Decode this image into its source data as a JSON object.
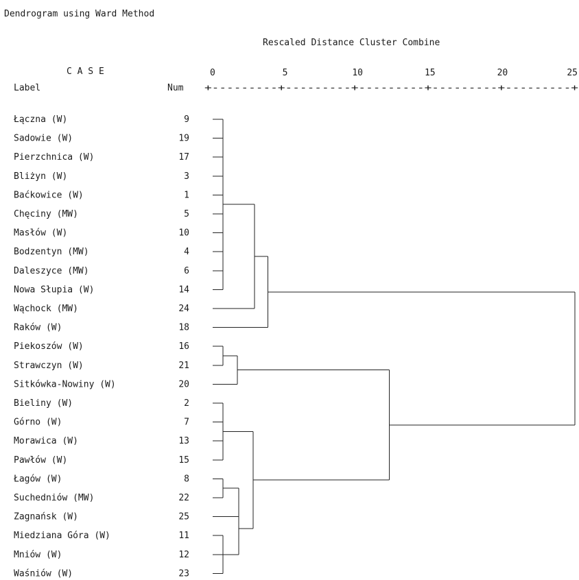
{
  "title": "Dendrogram using Ward Method",
  "axis_title": "Rescaled Distance Cluster Combine",
  "header": {
    "case": "C A S E",
    "label": "Label",
    "num": "Num",
    "scale_ruler": "+---------+---------+---------+---------+---------+"
  },
  "chart_data": {
    "type": "dendrogram",
    "method": "Ward",
    "title": "Dendrogram using Ward Method",
    "xlabel": "Rescaled Distance Cluster Combine",
    "xlim": [
      0,
      25
    ],
    "ticks": [
      0,
      5,
      10,
      15,
      20,
      25
    ],
    "cases": [
      {
        "label": "Łączna (W)",
        "num": 9
      },
      {
        "label": "Sadowie (W)",
        "num": 19
      },
      {
        "label": "Pierzchnica (W)",
        "num": 17
      },
      {
        "label": "Bliżyn (W)",
        "num": 3
      },
      {
        "label": "Baćkowice (W)",
        "num": 1
      },
      {
        "label": "Chęciny (MW)",
        "num": 5
      },
      {
        "label": "Masłów (W)",
        "num": 10
      },
      {
        "label": "Bodzentyn (MW)",
        "num": 4
      },
      {
        "label": "Daleszyce (MW)",
        "num": 6
      },
      {
        "label": "Nowa Słupia (W)",
        "num": 14
      },
      {
        "label": "Wąchock (MW)",
        "num": 24
      },
      {
        "label": "Raków (W)",
        "num": 18
      },
      {
        "label": "Piekoszów (W)",
        "num": 16
      },
      {
        "label": "Strawczyn (W)",
        "num": 21
      },
      {
        "label": "Sitkówka-Nowiny (W)",
        "num": 20
      },
      {
        "label": "Bieliny (W)",
        "num": 2
      },
      {
        "label": "Górno (W)",
        "num": 7
      },
      {
        "label": "Morawica (W)",
        "num": 13
      },
      {
        "label": "Pawłów (W)",
        "num": 15
      },
      {
        "label": "Łagów (W)",
        "num": 8
      },
      {
        "label": "Suchedniów (MW)",
        "num": 22
      },
      {
        "label": "Zagnańsk (W)",
        "num": 25
      },
      {
        "label": "Miedziana Góra (W)",
        "num": 11
      },
      {
        "label": "Mniów (W)",
        "num": 12
      },
      {
        "label": "Waśniów (W)",
        "num": 23
      }
    ],
    "merges": [
      {
        "children": [
          [
            0,
            1,
            2,
            3,
            4,
            5,
            6,
            7,
            8,
            9
          ]
        ],
        "height": 0.7
      },
      {
        "children": [
          "c0",
          [
            10
          ]
        ],
        "height": 2.9
      },
      {
        "children": [
          "c1",
          [
            11
          ]
        ],
        "height": 3.8
      },
      {
        "children": [
          [
            12
          ],
          [
            13
          ]
        ],
        "height": 0.7
      },
      {
        "children": [
          "c3",
          [
            14
          ]
        ],
        "height": 1.7
      },
      {
        "children": [
          [
            15,
            16,
            17,
            18
          ]
        ],
        "height": 0.7
      },
      {
        "children": [
          [
            19
          ],
          [
            20
          ]
        ],
        "height": 0.7
      },
      {
        "children": [
          "c6",
          [
            21
          ]
        ],
        "height": 1.8
      },
      {
        "children": [
          [
            22
          ],
          [
            23
          ],
          [
            24
          ]
        ],
        "height": 0.7
      },
      {
        "children": [
          "c7",
          "c8"
        ],
        "height": 1.8
      },
      {
        "children": [
          "c5",
          "c9"
        ],
        "height": 2.8
      },
      {
        "children": [
          "c4",
          "c10"
        ],
        "height": 12.2
      },
      {
        "children": [
          "c2",
          "c11"
        ],
        "height": 25
      }
    ]
  }
}
